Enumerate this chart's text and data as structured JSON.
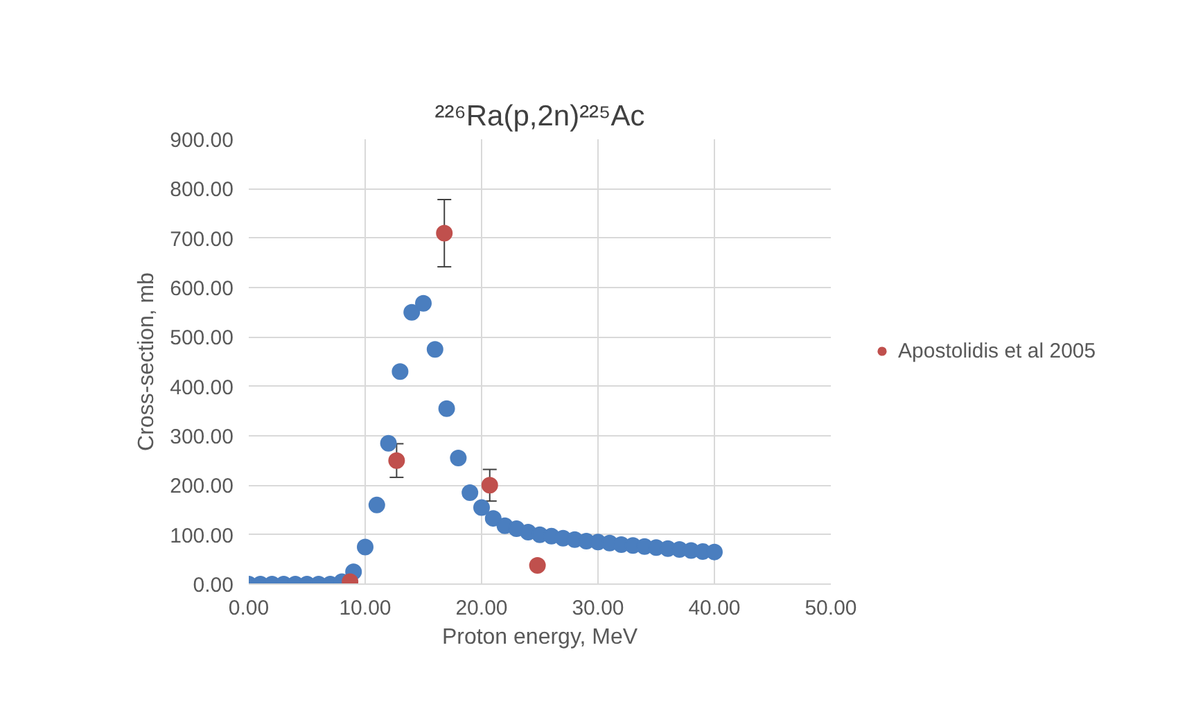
{
  "chart_data": {
    "type": "scatter",
    "title": "²²⁶Ra(p,2n)²²⁵Ac",
    "xlabel": "Proton energy, MeV",
    "ylabel": "Cross-section, mb",
    "xlim": [
      0,
      50
    ],
    "xticks": [
      {
        "value": 0,
        "label": "0.00"
      },
      {
        "value": 10,
        "label": "10.00"
      },
      {
        "value": 20,
        "label": "20.00"
      },
      {
        "value": 30,
        "label": "30.00"
      },
      {
        "value": 40,
        "label": "40.00"
      },
      {
        "value": 50,
        "label": "50.00"
      }
    ],
    "ylim": [
      0,
      900
    ],
    "yticks": [
      {
        "value": 0,
        "label": "0.00"
      },
      {
        "value": 100,
        "label": "100.00"
      },
      {
        "value": 200,
        "label": "200.00"
      },
      {
        "value": 300,
        "label": "300.00"
      },
      {
        "value": 400,
        "label": "400.00"
      },
      {
        "value": 500,
        "label": "500.00"
      },
      {
        "value": 600,
        "label": "600.00"
      },
      {
        "value": 700,
        "label": "700.00"
      },
      {
        "value": 800,
        "label": "800.00"
      },
      {
        "value": 900,
        "label": "900.00"
      }
    ],
    "grid": true,
    "legend": "right",
    "marker": "circle",
    "series": [
      {
        "color": "#4a7ebf",
        "x": [
          0,
          1,
          2,
          3,
          4,
          5,
          6,
          7,
          8,
          9,
          10,
          11,
          12,
          13,
          14,
          15,
          16,
          17,
          18,
          19,
          20,
          21,
          22,
          23,
          24,
          25,
          26,
          27,
          28,
          29,
          30,
          31,
          32,
          33,
          34,
          35,
          36,
          37,
          38,
          39,
          40
        ],
        "values": [
          0,
          0,
          0,
          0,
          0,
          0,
          0,
          0,
          5,
          25,
          75,
          160,
          285,
          430,
          550,
          568,
          475,
          355,
          255,
          185,
          155,
          133,
          118,
          112,
          105,
          100,
          97,
          93,
          90,
          87,
          85,
          83,
          80,
          78,
          76,
          74,
          72,
          70,
          68,
          66,
          65
        ]
      },
      {
        "name": "Apostolidis et al 2005",
        "color": "#c0504d",
        "x": [
          8.7,
          12.7,
          16.8,
          20.7,
          24.8
        ],
        "values": [
          5,
          250,
          710,
          200,
          38
        ],
        "errors": [
          null,
          34,
          68,
          32,
          null
        ]
      }
    ]
  }
}
